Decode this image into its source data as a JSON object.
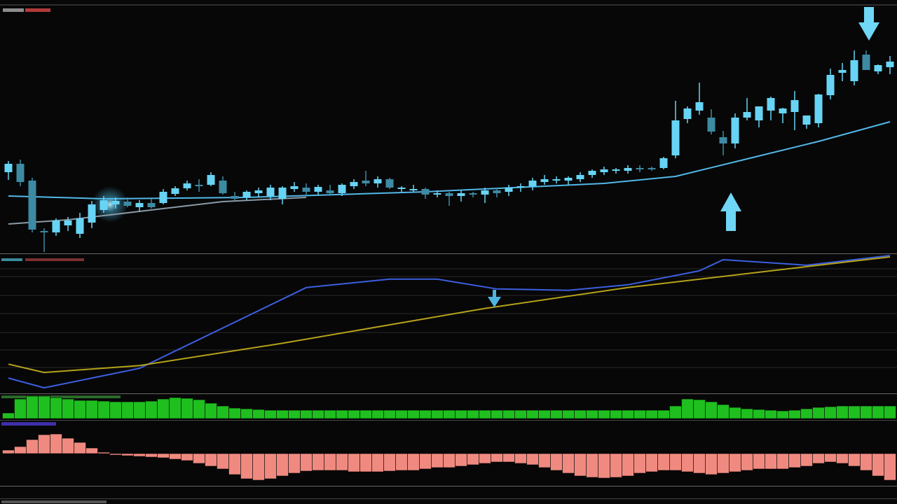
{
  "chart_data": [
    {
      "type": "candlestick",
      "ylim": [
        0,
        354
      ],
      "up_color": "#67d4f5",
      "down_color": "#3d8aa3",
      "open": [
        116,
        128,
        104,
        32,
        30,
        40,
        28,
        44,
        62,
        70,
        74,
        66,
        72,
        72,
        85,
        93,
        98,
        98,
        104,
        82,
        80,
        86,
        82,
        78,
        92,
        94,
        88,
        90,
        86,
        96,
        104,
        100,
        106,
        92,
        90,
        92,
        84,
        86,
        82,
        86,
        84,
        90,
        88,
        94,
        96,
        102,
        104,
        104,
        106,
        112,
        116,
        118,
        118,
        122,
        122,
        122,
        140,
        192,
        204,
        194,
        166,
        157,
        194,
        190,
        204,
        200,
        202,
        184,
        186,
        226,
        258,
        246,
        284,
        260,
        266
      ],
      "high": [
        132,
        134,
        108,
        36,
        50,
        52,
        58,
        75,
        82,
        80,
        80,
        76,
        78,
        92,
        96,
        104,
        106,
        116,
        110,
        88,
        90,
        94,
        98,
        96,
        102,
        100,
        98,
        98,
        100,
        106,
        118,
        110,
        108,
        96,
        98,
        94,
        90,
        88,
        90,
        88,
        94,
        94,
        98,
        100,
        108,
        112,
        110,
        110,
        116,
        120,
        124,
        122,
        126,
        126,
        124,
        138,
        218,
        210,
        244,
        206,
        175,
        200,
        222,
        210,
        224,
        208,
        232,
        196,
        228,
        264,
        272,
        290,
        290,
        270,
        282
      ],
      "low": [
        105,
        96,
        30,
        2,
        25,
        32,
        22,
        36,
        58,
        64,
        66,
        60,
        64,
        70,
        82,
        90,
        88,
        96,
        84,
        76,
        76,
        80,
        76,
        70,
        88,
        84,
        84,
        84,
        82,
        92,
        96,
        94,
        92,
        88,
        88,
        78,
        80,
        68,
        74,
        80,
        72,
        80,
        82,
        88,
        90,
        98,
        100,
        98,
        102,
        108,
        112,
        114,
        114,
        116,
        118,
        120,
        136,
        186,
        198,
        170,
        140,
        150,
        190,
        180,
        190,
        186,
        176,
        178,
        180,
        220,
        246,
        240,
        262,
        256,
        256
      ],
      "close": [
        128,
        102,
        34,
        30,
        47,
        47,
        50,
        70,
        76,
        75,
        68,
        72,
        66,
        88,
        93,
        100,
        96,
        112,
        86,
        78,
        88,
        90,
        94,
        94,
        96,
        88,
        95,
        86,
        98,
        102,
        100,
        106,
        94,
        94,
        92,
        84,
        86,
        82,
        86,
        84,
        90,
        86,
        94,
        96,
        104,
        106,
        106,
        108,
        112,
        118,
        120,
        120,
        122,
        120,
        120,
        136,
        190,
        207,
        216,
        174,
        157,
        194,
        202,
        210,
        222,
        207,
        219,
        197,
        227,
        255,
        262,
        276,
        262,
        269,
        274
      ],
      "series": [
        {
          "color": "#52b8e8",
          "x": [
            0,
            8,
            20,
            35,
            50,
            56,
            62,
            68,
            74
          ],
          "values": [
            82,
            78,
            80,
            88,
            100,
            110,
            135,
            160,
            188
          ]
        },
        {
          "color": "#8a9aa6",
          "x": [
            0,
            5,
            10,
            18,
            25
          ],
          "values": [
            42,
            48,
            58,
            74,
            80
          ]
        }
      ]
    },
    {
      "type": "line",
      "ylim": [
        0,
        100
      ],
      "series": [
        {
          "color": "#3b5fe0",
          "x": [
            0,
            3,
            11,
            25,
            32,
            36,
            41,
            47,
            52,
            58,
            60,
            67,
            74
          ],
          "values": [
            11,
            4,
            18,
            76,
            82,
            82,
            75,
            74,
            78,
            88,
            96,
            92,
            99
          ]
        },
        {
          "color": "#b5a21a",
          "x": [
            0,
            3,
            11,
            23,
            40,
            52,
            67,
            74
          ],
          "values": [
            21,
            15,
            20,
            36,
            61,
            76,
            91,
            98
          ]
        }
      ]
    },
    {
      "type": "bar",
      "ylim": [
        0,
        35
      ],
      "color": "#1fbf1f",
      "values": [
        8,
        28,
        32,
        32,
        30,
        28,
        26,
        26,
        25,
        24,
        24,
        24,
        25,
        28,
        30,
        29,
        27,
        22,
        18,
        15,
        14,
        13,
        12,
        12,
        12,
        12,
        12,
        12,
        12,
        12,
        12,
        12,
        12,
        12,
        12,
        12,
        12,
        12,
        12,
        12,
        12,
        12,
        12,
        12,
        12,
        12,
        12,
        12,
        12,
        12,
        12,
        12,
        12,
        12,
        12,
        12,
        18,
        28,
        27,
        24,
        20,
        16,
        14,
        13,
        12,
        11,
        12,
        14,
        16,
        17,
        18,
        18,
        18,
        18,
        18
      ]
    },
    {
      "type": "bar",
      "ylim": [
        -44,
        38
      ],
      "color": "#f08a80",
      "values": [
        5,
        10,
        20,
        27,
        28,
        22,
        16,
        8,
        2,
        -2,
        -3,
        -4,
        -5,
        -6,
        -8,
        -10,
        -14,
        -18,
        -22,
        -30,
        -36,
        -38,
        -36,
        -32,
        -28,
        -25,
        -24,
        -24,
        -24,
        -26,
        -26,
        -26,
        -25,
        -24,
        -24,
        -22,
        -20,
        -20,
        -18,
        -16,
        -14,
        -12,
        -12,
        -14,
        -16,
        -20,
        -24,
        -28,
        -32,
        -34,
        -35,
        -34,
        -32,
        -28,
        -26,
        -24,
        -24,
        -26,
        -28,
        -30,
        -28,
        -26,
        -24,
        -22,
        -22,
        -22,
        -20,
        -18,
        -14,
        -12,
        -14,
        -18,
        -24,
        -32,
        -38
      ]
    }
  ]
}
